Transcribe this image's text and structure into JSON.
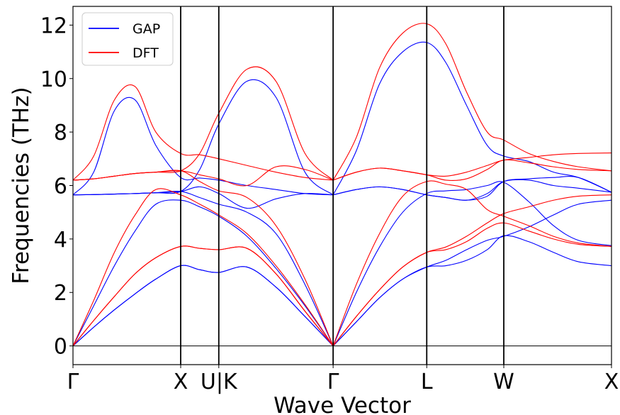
{
  "chart_data": {
    "type": "line",
    "title": "",
    "xlabel": "Wave Vector",
    "ylabel": "Frequencies (THz)",
    "ylim": [
      -0.7,
      12.7
    ],
    "yticks": [
      0,
      2,
      4,
      6,
      8,
      10,
      12
    ],
    "xlim": [
      0,
      6.5
    ],
    "high_symmetry_points": [
      {
        "label": "Γ",
        "x": 0.0
      },
      {
        "label": "X",
        "x": 1.3
      },
      {
        "label": "U|K",
        "x": 1.76
      },
      {
        "label": "Γ",
        "x": 3.14
      },
      {
        "label": "L",
        "x": 4.27
      },
      {
        "label": "W",
        "x": 5.2
      },
      {
        "label": "X",
        "x": 6.5
      }
    ],
    "grid": false,
    "legend": {
      "position": "top-left"
    },
    "series": [
      {
        "name": "GAP",
        "color": "#0000ff",
        "branches": [
          {
            "x": [
              0,
              0.25,
              0.5,
              0.75,
              1.0,
              1.3,
              1.53,
              1.76,
              2.1,
              2.45,
              2.8,
              3.14
            ],
            "y": [
              0,
              0.7,
              1.35,
              1.95,
              2.5,
              3.0,
              2.85,
              2.75,
              2.95,
              2.2,
              1.1,
              0
            ]
          },
          {
            "x": [
              0,
              0.25,
              0.5,
              0.75,
              1.0,
              1.3,
              1.53,
              1.76,
              2.1,
              2.45,
              2.8,
              3.14
            ],
            "y": [
              0,
              0.7,
              1.35,
              1.95,
              2.5,
              3.0,
              2.85,
              2.75,
              2.95,
              2.2,
              1.1,
              0
            ]
          },
          {
            "x": [
              0,
              0.25,
              0.5,
              0.75,
              1.0,
              1.3,
              1.53,
              1.76,
              2.1,
              2.45,
              2.8,
              3.14
            ],
            "y": [
              0,
              1.5,
              3.0,
              4.3,
              5.3,
              5.45,
              5.2,
              4.85,
              4.1,
              2.9,
              1.5,
              0
            ]
          },
          {
            "x": [
              0,
              0.25,
              0.5,
              0.75,
              1.0,
              1.3,
              1.53,
              1.76,
              2.1,
              2.45,
              2.8,
              3.14
            ],
            "y": [
              5.65,
              5.66,
              5.68,
              5.7,
              5.73,
              5.78,
              5.55,
              5.3,
              5.0,
              4.2,
              2.3,
              0
            ]
          },
          {
            "x": [
              0,
              0.25,
              0.5,
              0.75,
              1.0,
              1.3,
              1.53,
              1.76,
              2.1,
              2.45,
              2.8,
              3.14
            ],
            "y": [
              5.65,
              5.66,
              5.68,
              5.7,
              5.73,
              5.78,
              5.95,
              5.7,
              5.15,
              5.5,
              5.7,
              5.65
            ]
          },
          {
            "x": [
              0,
              0.25,
              0.5,
              0.75,
              1.0,
              1.3,
              1.53,
              1.76,
              2.1,
              2.45,
              2.8,
              3.14
            ],
            "y": [
              5.65,
              6.5,
              8.8,
              9.2,
              7.5,
              6.3,
              6.28,
              6.2,
              6.0,
              5.85,
              5.7,
              5.65
            ]
          },
          {
            "x": [
              0,
              0.25,
              0.5,
              0.75,
              1.0,
              1.3,
              1.53,
              1.76,
              2.1,
              2.45,
              2.8,
              3.14
            ],
            "y": [
              5.65,
              5.66,
              5.68,
              5.7,
              5.73,
              5.78,
              6.6,
              8.3,
              9.9,
              9.3,
              6.5,
              5.65
            ]
          },
          {
            "x": [
              3.14,
              3.42,
              3.7,
              3.98,
              4.27,
              4.5,
              4.75,
              5.0,
              5.2,
              5.5,
              5.8,
              6.1,
              6.5
            ],
            "y": [
              0,
              0.9,
              1.8,
              2.5,
              2.95,
              3.0,
              3.2,
              3.6,
              4.12,
              3.9,
              3.5,
              3.15,
              3.0
            ]
          },
          {
            "x": [
              3.14,
              3.42,
              3.7,
              3.98,
              4.27,
              4.5,
              4.75,
              5.0,
              5.2,
              5.5,
              5.8,
              6.1,
              6.5
            ],
            "y": [
              0,
              0.9,
              1.8,
              2.5,
              2.95,
              3.2,
              3.6,
              3.95,
              4.1,
              4.45,
              4.9,
              5.3,
              5.45
            ]
          },
          {
            "x": [
              3.14,
              3.42,
              3.7,
              3.98,
              4.27,
              4.5,
              4.75,
              5.0,
              5.2,
              5.5,
              5.8,
              6.1,
              6.5
            ],
            "y": [
              0,
              2.0,
              3.7,
              5.0,
              5.7,
              5.8,
              5.85,
              6.0,
              6.12,
              5.4,
              4.5,
              3.95,
              3.75
            ]
          },
          {
            "x": [
              3.14,
              3.42,
              3.7,
              3.98,
              4.27,
              4.5,
              4.75,
              5.0,
              5.2,
              5.5,
              5.8,
              6.1,
              6.5
            ],
            "y": [
              5.65,
              5.85,
              5.95,
              5.85,
              5.65,
              5.55,
              5.45,
              5.6,
              6.15,
              6.25,
              6.3,
              6.3,
              5.75
            ]
          },
          {
            "x": [
              3.14,
              3.42,
              3.7,
              3.98,
              4.27,
              4.5,
              4.75,
              5.0,
              5.2,
              5.5,
              5.8,
              6.1,
              6.5
            ],
            "y": [
              5.65,
              5.85,
              5.95,
              5.85,
              5.65,
              5.55,
              5.45,
              5.7,
              6.15,
              6.2,
              6.0,
              5.9,
              5.75
            ]
          },
          {
            "x": [
              3.14,
              3.42,
              3.7,
              3.98,
              4.27,
              4.5,
              4.75,
              5.0,
              5.2,
              5.5,
              5.8,
              6.1,
              6.5
            ],
            "y": [
              5.65,
              7.3,
              9.8,
              11.0,
              11.35,
              10.6,
              9.0,
              7.5,
              7.1,
              6.9,
              6.5,
              6.3,
              5.75
            ]
          }
        ]
      },
      {
        "name": "DFT",
        "color": "#ff0000",
        "branches": [
          {
            "x": [
              0,
              0.25,
              0.5,
              0.75,
              1.0,
              1.3,
              1.53,
              1.76,
              2.1,
              2.45,
              2.8,
              3.14
            ],
            "y": [
              0,
              0.95,
              1.85,
              2.7,
              3.3,
              3.72,
              3.65,
              3.6,
              3.65,
              2.7,
              1.3,
              0
            ]
          },
          {
            "x": [
              0,
              0.25,
              0.5,
              0.75,
              1.0,
              1.3,
              1.53,
              1.76,
              2.1,
              2.45,
              2.8,
              3.14
            ],
            "y": [
              0,
              0.95,
              1.85,
              2.7,
              3.3,
              3.72,
              3.65,
              3.6,
              3.65,
              2.7,
              1.3,
              0
            ]
          },
          {
            "x": [
              0,
              0.25,
              0.5,
              0.75,
              1.0,
              1.3,
              1.53,
              1.76,
              2.1,
              2.45,
              2.8,
              3.14
            ],
            "y": [
              0,
              1.7,
              3.5,
              4.9,
              5.85,
              5.65,
              5.3,
              4.9,
              4.2,
              3.0,
              1.55,
              0
            ]
          },
          {
            "x": [
              0,
              0.25,
              0.5,
              0.75,
              1.0,
              1.3,
              1.53,
              1.76,
              2.1,
              2.45,
              2.8,
              3.14
            ],
            "y": [
              6.2,
              6.25,
              6.35,
              6.45,
              6.5,
              6.55,
              6.15,
              5.8,
              5.55,
              4.5,
              2.5,
              0
            ]
          },
          {
            "x": [
              0,
              0.25,
              0.5,
              0.75,
              1.0,
              1.3,
              1.53,
              1.76,
              2.1,
              2.45,
              2.8,
              3.14
            ],
            "y": [
              6.2,
              6.25,
              6.35,
              6.45,
              6.5,
              6.55,
              6.4,
              6.25,
              6.0,
              6.7,
              6.6,
              6.2
            ]
          },
          {
            "x": [
              0,
              0.25,
              0.5,
              0.75,
              1.0,
              1.3,
              1.53,
              1.76,
              2.1,
              2.45,
              2.8,
              3.14
            ],
            "y": [
              6.2,
              7.1,
              9.2,
              9.7,
              8.0,
              7.2,
              7.15,
              7.0,
              6.75,
              6.5,
              6.3,
              6.2
            ]
          },
          {
            "x": [
              0,
              0.25,
              0.5,
              0.75,
              1.0,
              1.3,
              1.53,
              1.76,
              2.1,
              2.45,
              2.8,
              3.14
            ],
            "y": [
              6.2,
              6.25,
              6.35,
              6.45,
              6.5,
              6.55,
              7.2,
              8.7,
              10.35,
              9.9,
              7.2,
              6.2
            ]
          },
          {
            "x": [
              3.14,
              3.42,
              3.7,
              3.98,
              4.27,
              4.5,
              4.75,
              5.0,
              5.2,
              5.5,
              5.8,
              6.1,
              6.5
            ],
            "y": [
              0,
              1.1,
              2.1,
              2.95,
              3.5,
              3.6,
              3.9,
              4.4,
              4.6,
              4.3,
              4.0,
              3.8,
              3.72
            ]
          },
          {
            "x": [
              3.14,
              3.42,
              3.7,
              3.98,
              4.27,
              4.5,
              4.75,
              5.0,
              5.2,
              5.5,
              5.8,
              6.1,
              6.5
            ],
            "y": [
              0,
              1.1,
              2.1,
              2.95,
              3.5,
              3.7,
              4.1,
              4.6,
              4.95,
              5.2,
              5.45,
              5.6,
              5.65
            ]
          },
          {
            "x": [
              3.14,
              3.42,
              3.7,
              3.98,
              4.27,
              4.5,
              4.75,
              5.0,
              5.2,
              5.5,
              5.8,
              6.1,
              6.5
            ],
            "y": [
              0,
              2.3,
              4.2,
              5.6,
              6.15,
              6.05,
              5.85,
              5.1,
              4.85,
              4.5,
              4.1,
              3.85,
              3.72
            ]
          },
          {
            "x": [
              3.14,
              3.42,
              3.7,
              3.98,
              4.27,
              4.5,
              4.75,
              5.0,
              5.2,
              5.5,
              5.8,
              6.1,
              6.5
            ],
            "y": [
              6.2,
              6.5,
              6.65,
              6.55,
              6.4,
              6.35,
              6.5,
              6.75,
              6.95,
              7.05,
              7.15,
              7.2,
              7.22
            ]
          },
          {
            "x": [
              3.14,
              3.42,
              3.7,
              3.98,
              4.27,
              4.5,
              4.75,
              5.0,
              5.2,
              5.5,
              5.8,
              6.1,
              6.5
            ],
            "y": [
              6.2,
              6.5,
              6.65,
              6.55,
              6.4,
              6.2,
              6.25,
              6.6,
              6.95,
              6.85,
              6.7,
              6.6,
              6.55
            ]
          },
          {
            "x": [
              3.14,
              3.42,
              3.7,
              3.98,
              4.27,
              4.5,
              4.75,
              5.0,
              5.2,
              5.5,
              5.8,
              6.1,
              6.5
            ],
            "y": [
              6.2,
              7.8,
              10.4,
              11.7,
              12.05,
              11.3,
              9.5,
              8.0,
              7.7,
              7.2,
              6.9,
              6.7,
              6.55
            ]
          }
        ]
      }
    ]
  }
}
